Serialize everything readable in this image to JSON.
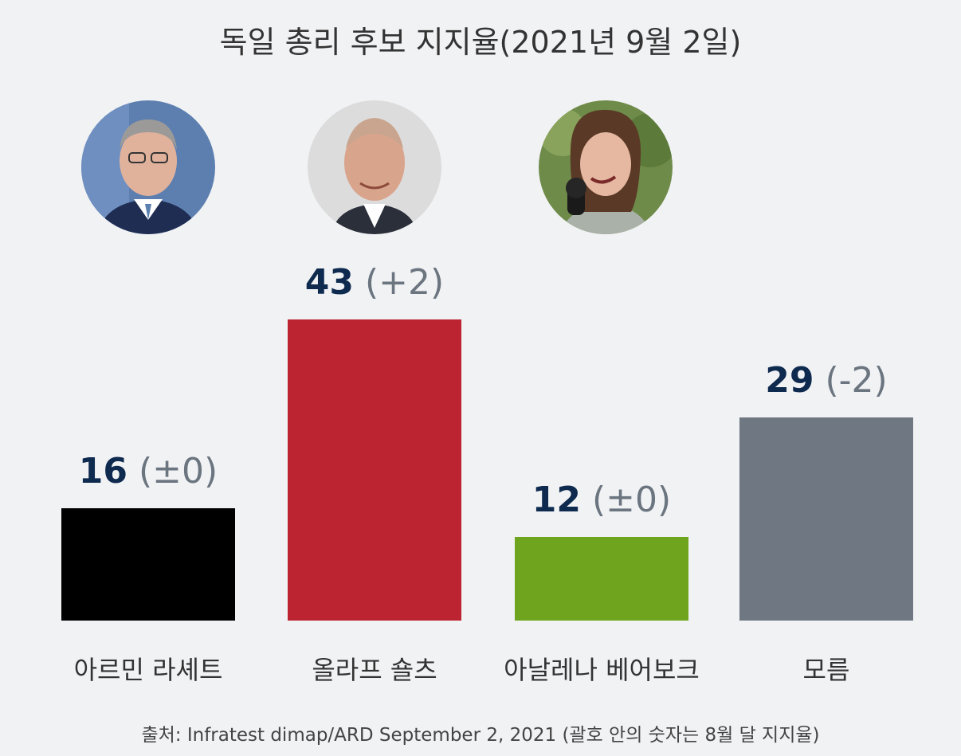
{
  "chart_data": {
    "type": "bar",
    "title": "독일 총리 후보 지지율(2021년 9월 2일)",
    "categories": [
      "아르민 라셰트",
      "올라프 숄츠",
      "아날레나 베어보크",
      "모름"
    ],
    "values": [
      16,
      43,
      12,
      29
    ],
    "changes": [
      "(±0)",
      "(+2)",
      "(±0)",
      "(-2)"
    ],
    "colors": [
      "#000000",
      "#bc2431",
      "#6fa41e",
      "#6f7882"
    ],
    "source": "출처: Infratest dimap/ARD September 2, 2021 (괄호 안의 숫자는 8월 달 지지율)"
  }
}
